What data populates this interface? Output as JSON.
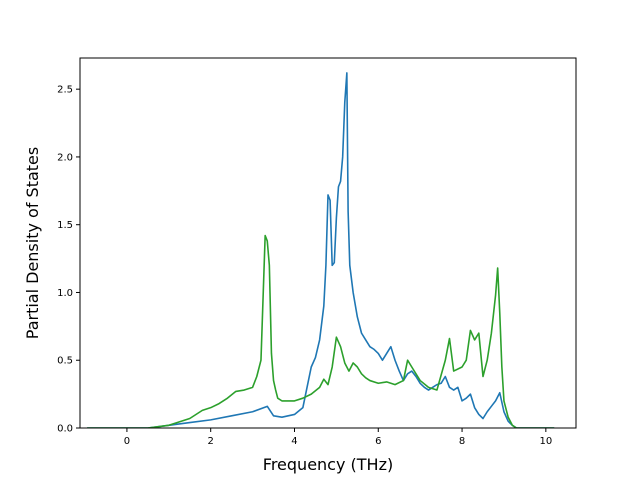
{
  "chart_data": {
    "type": "line",
    "title": "",
    "xlabel": "Frequency (THz)",
    "ylabel": "Partial Density of States",
    "xlim": [
      -1.12,
      10.72
    ],
    "ylim": [
      0,
      2.73
    ],
    "xticks": [
      0,
      2,
      4,
      6,
      8,
      10
    ],
    "xtick_labels": [
      "0",
      "2",
      "4",
      "6",
      "8",
      "10"
    ],
    "yticks": [
      0.0,
      0.5,
      1.0,
      1.5,
      2.0,
      2.5
    ],
    "ytick_labels": [
      "0.0",
      "0.5",
      "1.0",
      "1.5",
      "2.0",
      "2.5"
    ],
    "grid": false,
    "legend": "none",
    "series": [
      {
        "color": "#1f77b4",
        "x": [
          -0.95,
          0.5,
          1.0,
          1.5,
          2.0,
          2.5,
          3.0,
          3.35,
          3.5,
          3.7,
          4.0,
          4.2,
          4.3,
          4.4,
          4.5,
          4.6,
          4.7,
          4.75,
          4.8,
          4.85,
          4.9,
          4.95,
          5.0,
          5.05,
          5.1,
          5.15,
          5.2,
          5.25,
          5.28,
          5.32,
          5.4,
          5.5,
          5.6,
          5.7,
          5.8,
          5.9,
          6.0,
          6.1,
          6.2,
          6.3,
          6.4,
          6.5,
          6.6,
          6.7,
          6.8,
          6.9,
          7.0,
          7.1,
          7.2,
          7.3,
          7.4,
          7.5,
          7.6,
          7.7,
          7.8,
          7.9,
          8.0,
          8.1,
          8.2,
          8.3,
          8.4,
          8.5,
          8.6,
          8.7,
          8.8,
          8.9,
          9.0,
          9.1,
          9.2,
          9.3,
          10.2
        ],
        "y": [
          0.0,
          0.0,
          0.02,
          0.04,
          0.06,
          0.09,
          0.12,
          0.16,
          0.09,
          0.08,
          0.1,
          0.15,
          0.3,
          0.45,
          0.52,
          0.65,
          0.9,
          1.2,
          1.72,
          1.68,
          1.2,
          1.22,
          1.55,
          1.78,
          1.82,
          2.0,
          2.4,
          2.62,
          1.6,
          1.2,
          1.0,
          0.82,
          0.7,
          0.65,
          0.6,
          0.58,
          0.55,
          0.5,
          0.55,
          0.6,
          0.5,
          0.42,
          0.35,
          0.4,
          0.42,
          0.38,
          0.33,
          0.3,
          0.28,
          0.3,
          0.32,
          0.33,
          0.38,
          0.3,
          0.28,
          0.3,
          0.2,
          0.22,
          0.25,
          0.15,
          0.1,
          0.07,
          0.12,
          0.16,
          0.2,
          0.26,
          0.12,
          0.05,
          0.02,
          0.0,
          0.0
        ]
      },
      {
        "color": "#2ca02c",
        "x": [
          -0.95,
          0.5,
          1.0,
          1.5,
          1.8,
          2.0,
          2.2,
          2.4,
          2.6,
          2.8,
          3.0,
          3.1,
          3.2,
          3.3,
          3.35,
          3.4,
          3.45,
          3.5,
          3.55,
          3.6,
          3.7,
          3.8,
          4.0,
          4.2,
          4.4,
          4.6,
          4.7,
          4.8,
          4.9,
          5.0,
          5.1,
          5.2,
          5.3,
          5.4,
          5.5,
          5.6,
          5.7,
          5.8,
          6.0,
          6.2,
          6.4,
          6.6,
          6.7,
          6.8,
          7.0,
          7.2,
          7.4,
          7.6,
          7.7,
          7.8,
          8.0,
          8.1,
          8.2,
          8.3,
          8.4,
          8.5,
          8.6,
          8.7,
          8.8,
          8.85,
          8.9,
          8.95,
          9.0,
          9.1,
          9.2,
          9.3,
          10.2
        ],
        "y": [
          0.0,
          0.0,
          0.02,
          0.07,
          0.13,
          0.15,
          0.18,
          0.22,
          0.27,
          0.28,
          0.3,
          0.38,
          0.5,
          1.42,
          1.38,
          1.2,
          0.55,
          0.35,
          0.28,
          0.22,
          0.2,
          0.2,
          0.2,
          0.22,
          0.25,
          0.3,
          0.36,
          0.32,
          0.45,
          0.67,
          0.6,
          0.48,
          0.42,
          0.48,
          0.45,
          0.4,
          0.37,
          0.35,
          0.33,
          0.34,
          0.32,
          0.35,
          0.5,
          0.45,
          0.35,
          0.3,
          0.28,
          0.5,
          0.66,
          0.42,
          0.45,
          0.5,
          0.72,
          0.65,
          0.7,
          0.38,
          0.5,
          0.7,
          0.98,
          1.18,
          0.85,
          0.45,
          0.2,
          0.08,
          0.02,
          0.0,
          0.0
        ]
      }
    ]
  }
}
